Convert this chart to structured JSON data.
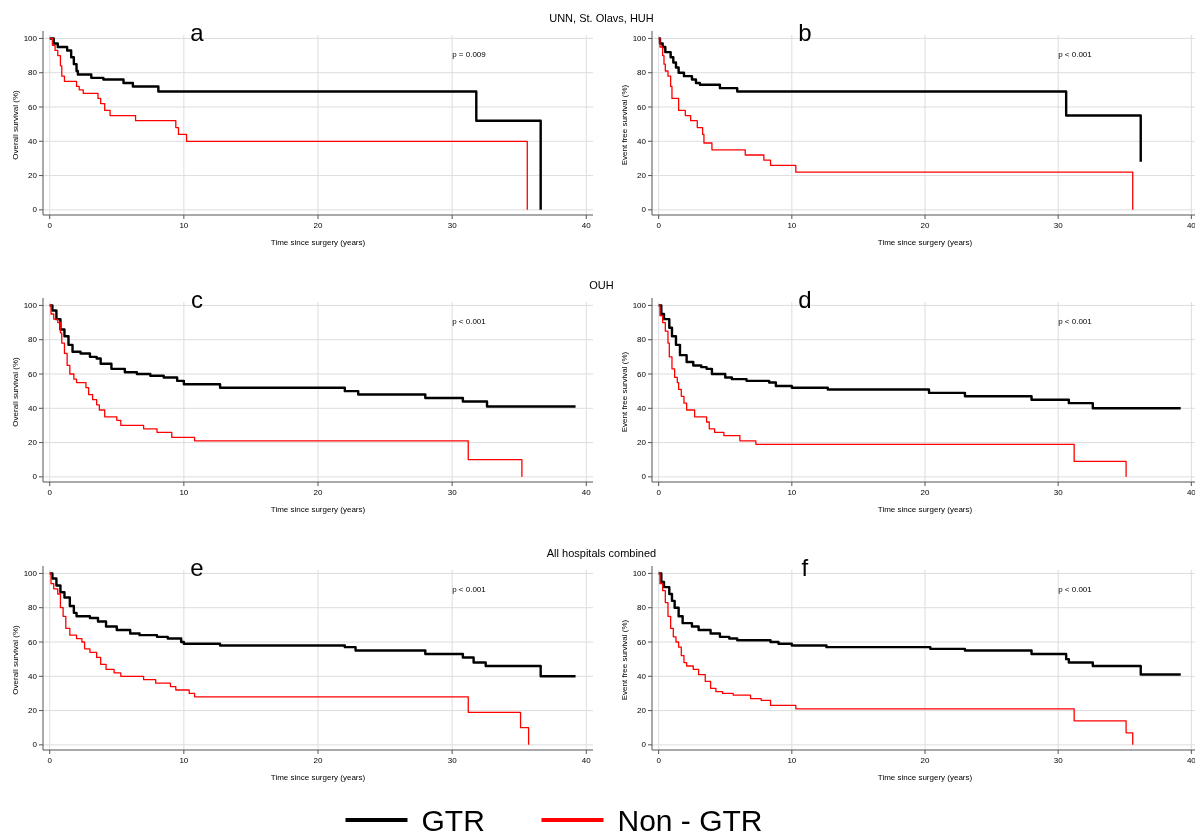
{
  "chart_data": [
    {
      "type": "step",
      "title": "a",
      "subtitle": "UNN, St. Olavs, HUH",
      "xlabel": "Time since surgery (years)",
      "ylabel": "Overall survival (%)",
      "annotations": [
        "p = 0.009"
      ],
      "xlim": [
        -0.5,
        40.5
      ],
      "ylim": [
        -3,
        102
      ],
      "xticks": [
        0,
        10,
        20,
        30,
        40
      ],
      "yticks": [
        0,
        20,
        40,
        60,
        80,
        100
      ],
      "grid": true,
      "series": [
        {
          "color": "#000000",
          "x": [
            0,
            0.3,
            0.6,
            1.3,
            1.6,
            1.8,
            2,
            2.1,
            3.1,
            4,
            5.5,
            6.2,
            8.1,
            31.8,
            36.6
          ],
          "values": [
            100,
            97,
            95,
            93,
            89,
            85,
            81,
            79,
            77,
            76,
            74,
            72,
            69,
            52,
            0
          ]
        },
        {
          "color": "#ff0000",
          "x": [
            0,
            0.2,
            0.4,
            0.6,
            0.8,
            0.9,
            1.1,
            2,
            2.2,
            2.5,
            3.6,
            3.8,
            4.1,
            4.5,
            6.4,
            9.4,
            9.6,
            10.2,
            35.6
          ],
          "values": [
            100,
            96,
            93,
            90,
            84,
            78,
            75,
            72,
            70,
            68,
            65,
            62,
            58,
            55,
            52,
            48,
            44,
            40,
            0
          ]
        }
      ]
    },
    {
      "type": "step",
      "title": "b",
      "xlabel": "Time since surgery (years)",
      "ylabel": "Event free survival (%)",
      "annotations": [
        "p < 0.001"
      ],
      "xlim": [
        -0.5,
        40.5
      ],
      "ylim": [
        -3,
        102
      ],
      "xticks": [
        0,
        10,
        20,
        30,
        40
      ],
      "yticks": [
        0,
        20,
        40,
        60,
        80,
        100
      ],
      "grid": true,
      "series": [
        {
          "color": "#000000",
          "x": [
            0,
            0.1,
            0.3,
            0.5,
            0.9,
            1.1,
            1.3,
            1.5,
            1.9,
            2.5,
            2.8,
            3.1,
            4.6,
            5.9,
            30.6,
            36.2
          ],
          "values": [
            100,
            97,
            95,
            92,
            89,
            86,
            83,
            80,
            78,
            76,
            74,
            73,
            71,
            69,
            55,
            28
          ]
        },
        {
          "color": "#ff0000",
          "x": [
            0,
            0.1,
            0.3,
            0.4,
            0.5,
            0.7,
            0.9,
            1,
            1.5,
            2,
            2.4,
            2.9,
            3.3,
            3.4,
            4,
            6.5,
            7.9,
            8.4,
            10.3,
            35.6
          ],
          "values": [
            100,
            95,
            90,
            85,
            81,
            78,
            72,
            65,
            58,
            55,
            52,
            48,
            44,
            39,
            35,
            32,
            29,
            26,
            22,
            0
          ]
        }
      ]
    },
    {
      "type": "step",
      "title": "c",
      "subtitle": "OUH",
      "xlabel": "Time since surgery (years)",
      "ylabel": "Overall survival (%)",
      "annotations": [
        "p < 0.001"
      ],
      "xlim": [
        -0.5,
        40.5
      ],
      "ylim": [
        -3,
        102
      ],
      "xticks": [
        0,
        10,
        20,
        30,
        40
      ],
      "yticks": [
        0,
        20,
        40,
        60,
        80,
        100
      ],
      "grid": true,
      "series": [
        {
          "color": "#000000",
          "x": [
            0,
            0.2,
            0.5,
            0.8,
            1.1,
            1.4,
            1.7,
            2.3,
            3,
            3.5,
            3.8,
            4.6,
            5.6,
            6.5,
            7.5,
            8.5,
            9.5,
            10,
            12.7,
            22,
            23,
            28,
            30.8,
            32.6,
            39.2
          ],
          "values": [
            100,
            97,
            92,
            86,
            82,
            77,
            73,
            72,
            70,
            69,
            66,
            63,
            61,
            60,
            59,
            58,
            56,
            54,
            52,
            50,
            48,
            46,
            44,
            41,
            41
          ]
        },
        {
          "color": "#ff0000",
          "x": [
            0,
            0.1,
            0.3,
            0.6,
            0.8,
            0.9,
            1.1,
            1.3,
            1.5,
            1.8,
            2,
            2.7,
            2.9,
            3.2,
            3.5,
            3.7,
            4.1,
            5,
            5.3,
            7,
            8,
            9.1,
            10.8,
            31.2,
            35.2
          ],
          "values": [
            100,
            95,
            92,
            90,
            84,
            78,
            72,
            65,
            60,
            57,
            55,
            52,
            48,
            45,
            42,
            39,
            35,
            33,
            30,
            28,
            26,
            23,
            21,
            10,
            0
          ]
        }
      ]
    },
    {
      "type": "step",
      "title": "d",
      "xlabel": "Time since surgery (years)",
      "ylabel": "Event free survival (%)",
      "annotations": [
        "p < 0.001"
      ],
      "xlim": [
        -0.5,
        40.5
      ],
      "ylim": [
        -3,
        102
      ],
      "xticks": [
        0,
        10,
        20,
        30,
        40
      ],
      "yticks": [
        0,
        20,
        40,
        60,
        80,
        100
      ],
      "grid": true,
      "series": [
        {
          "color": "#000000",
          "x": [
            0,
            0.2,
            0.4,
            0.8,
            1,
            1.3,
            1.6,
            2.1,
            2.6,
            3.2,
            3.6,
            4,
            5,
            5.5,
            6.6,
            8.3,
            8.8,
            10,
            12.7,
            20.3,
            23,
            28,
            30.8,
            32.6,
            39.2
          ],
          "values": [
            100,
            95,
            92,
            87,
            82,
            77,
            71,
            67,
            65,
            64,
            63,
            60,
            58,
            57,
            56,
            55,
            53,
            52,
            51,
            49,
            47,
            45,
            43,
            40,
            40
          ]
        },
        {
          "color": "#ff0000",
          "x": [
            0,
            0.1,
            0.3,
            0.5,
            0.7,
            0.8,
            1,
            1.2,
            1.4,
            1.5,
            1.7,
            1.9,
            2.1,
            2.7,
            3.6,
            3.8,
            4.2,
            4.9,
            6.1,
            7.3,
            31.2,
            35.1
          ],
          "values": [
            100,
            94,
            90,
            85,
            78,
            70,
            63,
            58,
            55,
            51,
            47,
            43,
            39,
            35,
            32,
            28,
            26,
            24,
            21,
            19,
            9,
            0
          ]
        }
      ]
    },
    {
      "type": "step",
      "title": "e",
      "subtitle": "All hospitals combined",
      "xlabel": "Time since surgery (years)",
      "ylabel": "Overall survival (%)",
      "annotations": [
        "p < 0.001"
      ],
      "xlim": [
        -0.5,
        40.5
      ],
      "ylim": [
        -3,
        102
      ],
      "xticks": [
        0,
        10,
        20,
        30,
        40
      ],
      "yticks": [
        0,
        20,
        40,
        60,
        80,
        100
      ],
      "grid": true,
      "series": [
        {
          "color": "#000000",
          "x": [
            0,
            0.2,
            0.5,
            0.8,
            1.1,
            1.5,
            1.8,
            2,
            3,
            3.6,
            4.2,
            5,
            6,
            6.7,
            8,
            8.8,
            9.8,
            10,
            12.7,
            22,
            22.8,
            28,
            30.8,
            31.6,
            32.5,
            36.6,
            39.2
          ],
          "values": [
            100,
            97,
            93,
            89,
            86,
            81,
            77,
            75,
            74,
            72,
            69,
            67,
            65,
            64,
            63,
            62,
            60,
            59,
            58,
            57,
            55,
            53,
            51,
            48,
            46,
            40,
            40
          ]
        },
        {
          "color": "#ff0000",
          "x": [
            0,
            0.1,
            0.3,
            0.6,
            0.8,
            1,
            1.2,
            1.5,
            2,
            2.4,
            2.6,
            3,
            3.5,
            3.8,
            4.2,
            4.8,
            5.3,
            7,
            7.9,
            9,
            9.4,
            10.4,
            10.8,
            31.2,
            35.1,
            35.7
          ],
          "values": [
            100,
            94,
            91,
            88,
            80,
            75,
            68,
            64,
            62,
            60,
            56,
            54,
            51,
            47,
            44,
            42,
            40,
            38,
            36,
            34,
            32,
            30,
            28,
            19,
            10,
            0
          ]
        }
      ]
    },
    {
      "type": "step",
      "title": "f",
      "xlabel": "Time since surgery (years)",
      "ylabel": "Event free survival (%)",
      "annotations": [
        "p < 0.001"
      ],
      "xlim": [
        -0.5,
        40.5
      ],
      "ylim": [
        -3,
        102
      ],
      "xticks": [
        0,
        10,
        20,
        30,
        40
      ],
      "yticks": [
        0,
        20,
        40,
        60,
        80,
        100
      ],
      "grid": true,
      "legend": "bottom",
      "series": [
        {
          "name": "GTR",
          "color": "#000000",
          "x": [
            0,
            0.2,
            0.4,
            0.8,
            1,
            1.2,
            1.5,
            1.8,
            2.5,
            3,
            3.9,
            4.6,
            5.3,
            5.9,
            8.4,
            9,
            10,
            12.6,
            20.4,
            23,
            28,
            30.6,
            30.8,
            32.6,
            36.2,
            39.2
          ],
          "values": [
            100,
            95,
            92,
            88,
            84,
            80,
            75,
            71,
            69,
            67,
            65,
            63,
            62,
            61,
            60,
            59,
            58,
            57,
            56,
            55,
            53,
            50,
            48,
            46,
            41,
            41
          ]
        },
        {
          "name": "Non - GTR",
          "color": "#ff0000",
          "x": [
            0,
            0.1,
            0.3,
            0.5,
            0.7,
            0.9,
            1.1,
            1.3,
            1.5,
            1.7,
            1.9,
            2.1,
            2.6,
            3,
            3.5,
            3.9,
            4.3,
            4.8,
            5.6,
            6.9,
            7.7,
            8.4,
            10.3,
            31.2,
            35.1,
            35.6
          ],
          "values": [
            100,
            94,
            90,
            83,
            75,
            68,
            63,
            60,
            57,
            52,
            48,
            46,
            44,
            41,
            37,
            33,
            31,
            30,
            29,
            27,
            26,
            23,
            21,
            14,
            7,
            0
          ]
        }
      ]
    }
  ]
}
